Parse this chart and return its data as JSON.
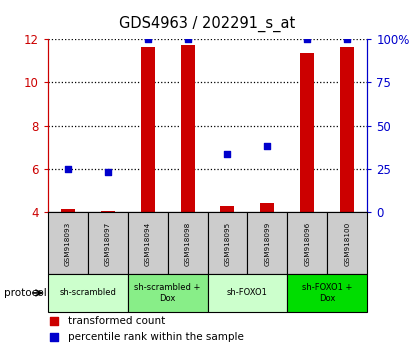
{
  "title": "GDS4963 / 202291_s_at",
  "samples": [
    "GSM918093",
    "GSM918097",
    "GSM918094",
    "GSM918098",
    "GSM918095",
    "GSM918099",
    "GSM918096",
    "GSM918100"
  ],
  "red_values": [
    4.15,
    4.08,
    11.65,
    11.72,
    4.28,
    4.42,
    11.35,
    11.65
  ],
  "red_bottom": [
    4.0,
    4.0,
    4.0,
    4.0,
    4.0,
    4.0,
    4.0,
    4.0
  ],
  "blue_values": [
    6.0,
    5.87,
    12.0,
    12.0,
    6.68,
    7.05,
    12.0,
    12.0
  ],
  "ylim": [
    4,
    12
  ],
  "ytick_left_labels": [
    "4",
    "6",
    "8",
    "10",
    "12"
  ],
  "ytick_right_labels": [
    "0",
    "25",
    "50",
    "75",
    "100%"
  ],
  "left_axis_color": "#cc0000",
  "right_axis_color": "#0000cc",
  "bar_color": "#cc0000",
  "dot_color": "#0000cc",
  "groups": [
    {
      "label": "sh-scrambled",
      "start": 0,
      "end": 2,
      "color": "#ccffcc"
    },
    {
      "label": "sh-scrambled +\nDox",
      "start": 2,
      "end": 4,
      "color": "#88ee88"
    },
    {
      "label": "sh-FOXO1",
      "start": 4,
      "end": 6,
      "color": "#ccffcc"
    },
    {
      "label": "sh-FOXO1 +\nDox",
      "start": 6,
      "end": 8,
      "color": "#00dd00"
    }
  ],
  "protocol_label": "protocol",
  "legend_red_label": "transformed count",
  "legend_blue_label": "percentile rank within the sample",
  "sample_box_color": "#cccccc",
  "bar_width": 0.35,
  "dot_size": 22
}
